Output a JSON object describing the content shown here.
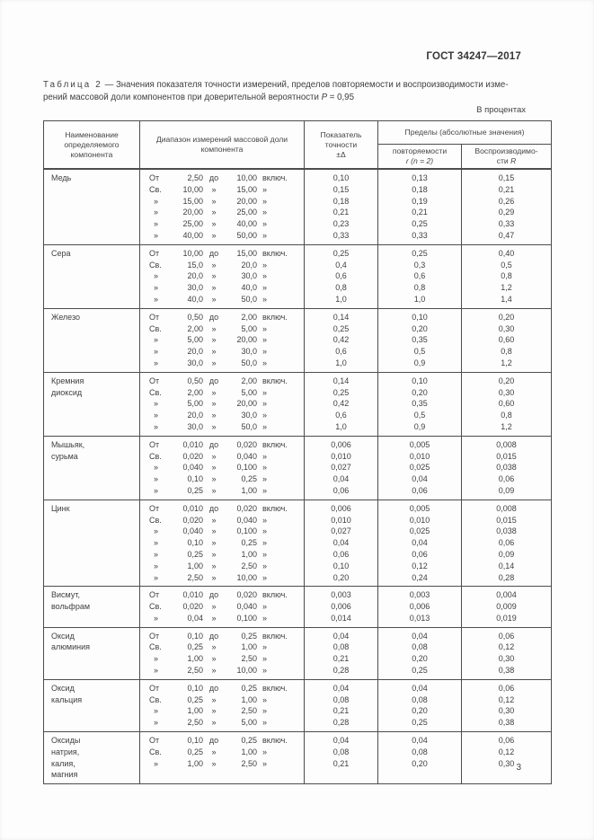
{
  "page": {
    "doc_number": "ГОСТ 34247—2017",
    "units_note": "В процентах",
    "page_number": "3"
  },
  "caption": {
    "label": "Таблица 2",
    "line1_rest": " — Значения показателя точности измерений, пределов повторяемости и воспроизводимости изме-",
    "line2": "рений массовой доли компонентов при доверительной вероятности ",
    "probability_symbol": "P",
    "probability_value": " = 0,95"
  },
  "table": {
    "header": {
      "component": "Наименование определяемого компонента",
      "range": "Диапазон измерений массовой доли компонента",
      "accuracy_lines": [
        "Показатель",
        "точности",
        "±Δ"
      ],
      "limits_group": "Пределы (абсолютные значения)",
      "repeatability_line1": "повторяемости",
      "repeatability_line2": "r (n = 2)",
      "reproducibility_line1": "Воспроизводимо-",
      "reproducibility_line2": "сти ",
      "reproducibility_symbol": "R"
    },
    "rows": [
      {
        "component": [
          "Медь"
        ],
        "ranges": [
          [
            "От",
            "2,50",
            "до",
            "10,00",
            "включ."
          ],
          [
            "Св.",
            "10,00",
            "»",
            "15,00",
            "»"
          ],
          [
            "»",
            "15,00",
            "»",
            "20,00",
            "»"
          ],
          [
            "»",
            "20,00",
            "»",
            "25,00",
            "»"
          ],
          [
            "»",
            "25,00",
            "»",
            "40,00",
            "»"
          ],
          [
            "»",
            "40,00",
            "»",
            "50,00",
            "»"
          ]
        ],
        "delta": [
          "0,10",
          "0,15",
          "0,18",
          "0,21",
          "0,23",
          "0,33"
        ],
        "repeatability": [
          "0,13",
          "0,18",
          "0,19",
          "0,21",
          "0,25",
          "0,33"
        ],
        "reproducibility": [
          "0,15",
          "0,21",
          "0,26",
          "0,29",
          "0,33",
          "0,47"
        ]
      },
      {
        "component": [
          "Сера"
        ],
        "ranges": [
          [
            "От",
            "10,00",
            "до",
            "15,00",
            "включ."
          ],
          [
            "Св.",
            "15,0",
            "»",
            "20,0",
            "»"
          ],
          [
            "»",
            "20,0",
            "»",
            "30,0",
            "»"
          ],
          [
            "»",
            "30,0",
            "»",
            "40,0",
            "»"
          ],
          [
            "»",
            "40,0",
            "»",
            "50,0",
            "»"
          ]
        ],
        "delta": [
          "0,25",
          "0,4",
          "0,6",
          "0,8",
          "1,0"
        ],
        "repeatability": [
          "0,25",
          "0,3",
          "0,6",
          "0,8",
          "1,0"
        ],
        "reproducibility": [
          "0,40",
          "0,5",
          "0,8",
          "1,2",
          "1,4"
        ]
      },
      {
        "component": [
          "Железо"
        ],
        "ranges": [
          [
            "От",
            "0,50",
            "до",
            "2,00",
            "включ."
          ],
          [
            "Св.",
            "2,00",
            "»",
            "5,00",
            "»"
          ],
          [
            "»",
            "5,00",
            "»",
            "20,00",
            "»"
          ],
          [
            "»",
            "20,0",
            "»",
            "30,0",
            "»"
          ],
          [
            "»",
            "30,0",
            "»",
            "50,0",
            "»"
          ]
        ],
        "delta": [
          "0,14",
          "0,25",
          "0,42",
          "0,6",
          "1,0"
        ],
        "repeatability": [
          "0,10",
          "0,20",
          "0,35",
          "0,5",
          "0,9"
        ],
        "reproducibility": [
          "0,20",
          "0,30",
          "0,60",
          "0,8",
          "1,2"
        ]
      },
      {
        "component": [
          "Кремния",
          "диоксид"
        ],
        "ranges": [
          [
            "От",
            "0,50",
            "до",
            "2,00",
            "включ."
          ],
          [
            "Св.",
            "2,00",
            "»",
            "5,00",
            "»"
          ],
          [
            "»",
            "5,00",
            "»",
            "20,00",
            "»"
          ],
          [
            "»",
            "20,0",
            "»",
            "30,0",
            "»"
          ],
          [
            "»",
            "30,0",
            "»",
            "50,0",
            "»"
          ]
        ],
        "delta": [
          "0,14",
          "0,25",
          "0,42",
          "0,6",
          "1,0"
        ],
        "repeatability": [
          "0,10",
          "0,20",
          "0,35",
          "0,5",
          "0,9"
        ],
        "reproducibility": [
          "0,20",
          "0,30",
          "0,60",
          "0,8",
          "1,2"
        ]
      },
      {
        "component": [
          "Мышьяк,",
          "сурьма"
        ],
        "ranges": [
          [
            "От",
            "0,010",
            "до",
            "0,020",
            "включ."
          ],
          [
            "Св.",
            "0,020",
            "»",
            "0,040",
            "»"
          ],
          [
            "»",
            "0,040",
            "»",
            "0,100",
            "»"
          ],
          [
            "»",
            "0,10",
            "»",
            "0,25",
            "»"
          ],
          [
            "»",
            "0,25",
            "»",
            "1,00",
            "»"
          ]
        ],
        "delta": [
          "0,006",
          "0,010",
          "0,027",
          "0,04",
          "0,06"
        ],
        "repeatability": [
          "0,005",
          "0,010",
          "0,025",
          "0,04",
          "0,06"
        ],
        "reproducibility": [
          "0,008",
          "0,015",
          "0,038",
          "0,06",
          "0,09"
        ]
      },
      {
        "component": [
          "Цинк"
        ],
        "ranges": [
          [
            "От",
            "0,010",
            "до",
            "0,020",
            "включ."
          ],
          [
            "Св.",
            "0,020",
            "»",
            "0,040",
            "»"
          ],
          [
            "»",
            "0,040",
            "»",
            "0,100",
            "»"
          ],
          [
            "»",
            "0,10",
            "»",
            "0,25",
            "»"
          ],
          [
            "»",
            "0,25",
            "»",
            "1,00",
            "»"
          ],
          [
            "»",
            "1,00",
            "»",
            "2,50",
            "»"
          ],
          [
            "»",
            "2,50",
            "»",
            "10,00",
            "»"
          ]
        ],
        "delta": [
          "0,006",
          "0,010",
          "0,027",
          "0,04",
          "0,06",
          "0,10",
          "0,20"
        ],
        "repeatability": [
          "0,005",
          "0,010",
          "0,025",
          "0,04",
          "0,06",
          "0,12",
          "0,24"
        ],
        "reproducibility": [
          "0,008",
          "0,015",
          "0,038",
          "0,06",
          "0,09",
          "0,14",
          "0,28"
        ]
      },
      {
        "component": [
          "Висмут,",
          "вольфрам"
        ],
        "ranges": [
          [
            "От",
            "0,010",
            "до",
            "0,020",
            "включ."
          ],
          [
            "Св.",
            "0,020",
            "»",
            "0,040",
            "»"
          ],
          [
            "»",
            "0,04",
            "»",
            "0,100",
            "»"
          ]
        ],
        "delta": [
          "0,003",
          "0,006",
          "0,014"
        ],
        "repeatability": [
          "0,003",
          "0,006",
          "0,013"
        ],
        "reproducibility": [
          "0,004",
          "0,009",
          "0,019"
        ]
      },
      {
        "component": [
          "Оксид",
          "алюминия"
        ],
        "ranges": [
          [
            "От",
            "0,10",
            "до",
            "0,25",
            "включ."
          ],
          [
            "Св.",
            "0,25",
            "»",
            "1,00",
            "»"
          ],
          [
            "»",
            "1,00",
            "»",
            "2,50",
            "»"
          ],
          [
            "»",
            "2,50",
            "»",
            "10,00",
            "»"
          ]
        ],
        "delta": [
          "0,04",
          "0,08",
          "0,21",
          "0,28"
        ],
        "repeatability": [
          "0,04",
          "0,08",
          "0,20",
          "0,25"
        ],
        "reproducibility": [
          "0,06",
          "0,12",
          "0,30",
          "0,38"
        ]
      },
      {
        "component": [
          "Оксид",
          "кальция"
        ],
        "ranges": [
          [
            "От",
            "0,10",
            "до",
            "0,25",
            "включ."
          ],
          [
            "Св.",
            "0,25",
            "»",
            "1,00",
            "»"
          ],
          [
            "»",
            "1,00",
            "»",
            "2,50",
            "»"
          ],
          [
            "»",
            "2,50",
            "»",
            "5,00",
            "»"
          ]
        ],
        "delta": [
          "0,04",
          "0,08",
          "0,21",
          "0,28"
        ],
        "repeatability": [
          "0,04",
          "0,08",
          "0,20",
          "0,25"
        ],
        "reproducibility": [
          "0,06",
          "0,12",
          "0,30",
          "0,38"
        ]
      },
      {
        "component": [
          "Оксиды",
          "натрия,",
          "калия,",
          "магния"
        ],
        "ranges": [
          [
            "От",
            "0,10",
            "до",
            "0,25",
            "включ."
          ],
          [
            "Св.",
            "0,25",
            "»",
            "1,00",
            "»"
          ],
          [
            "»",
            "1,00",
            "»",
            "2,50",
            "»"
          ]
        ],
        "delta": [
          "0,04",
          "0,08",
          "0,21"
        ],
        "repeatability": [
          "0,04",
          "0,08",
          "0,20"
        ],
        "reproducibility": [
          "0,06",
          "0,12",
          "0,30"
        ]
      }
    ]
  }
}
